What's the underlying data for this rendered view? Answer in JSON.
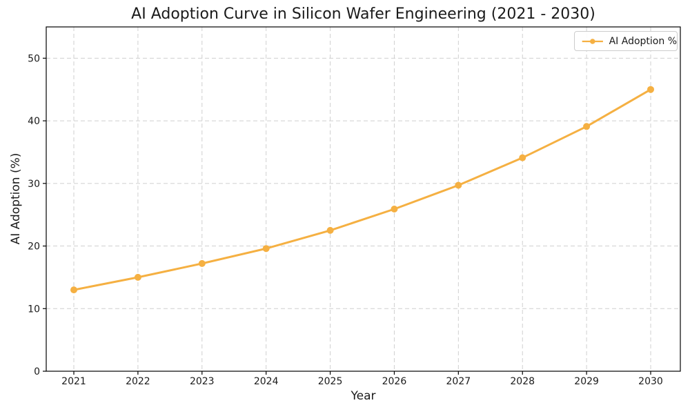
{
  "chart_data": {
    "type": "line",
    "title": "AI Adoption Curve in Silicon Wafer Engineering (2021 - 2030)",
    "xlabel": "Year",
    "ylabel": "AI Adoption (%)",
    "categories": [
      "2021",
      "2022",
      "2023",
      "2024",
      "2025",
      "2026",
      "2027",
      "2028",
      "2029",
      "2030"
    ],
    "series": [
      {
        "name": "AI Adoption %",
        "values": [
          13.0,
          15.0,
          17.2,
          19.6,
          22.5,
          25.9,
          29.7,
          34.1,
          39.1,
          45.0
        ],
        "marker": "circle"
      }
    ],
    "ylim": [
      0,
      55
    ],
    "y_ticks": [
      0,
      10,
      20,
      30,
      40,
      50
    ],
    "grid": true,
    "grid_style": "dashed",
    "legend": {
      "position": "upper right",
      "entries": [
        "AI Adoption %"
      ]
    },
    "colors": {
      "line": "#F5B042",
      "grid": "#cfcfcf",
      "spine": "#000000",
      "text": "#1a1a1a",
      "background": "#ffffff",
      "legend_border": "#cccccc"
    }
  }
}
